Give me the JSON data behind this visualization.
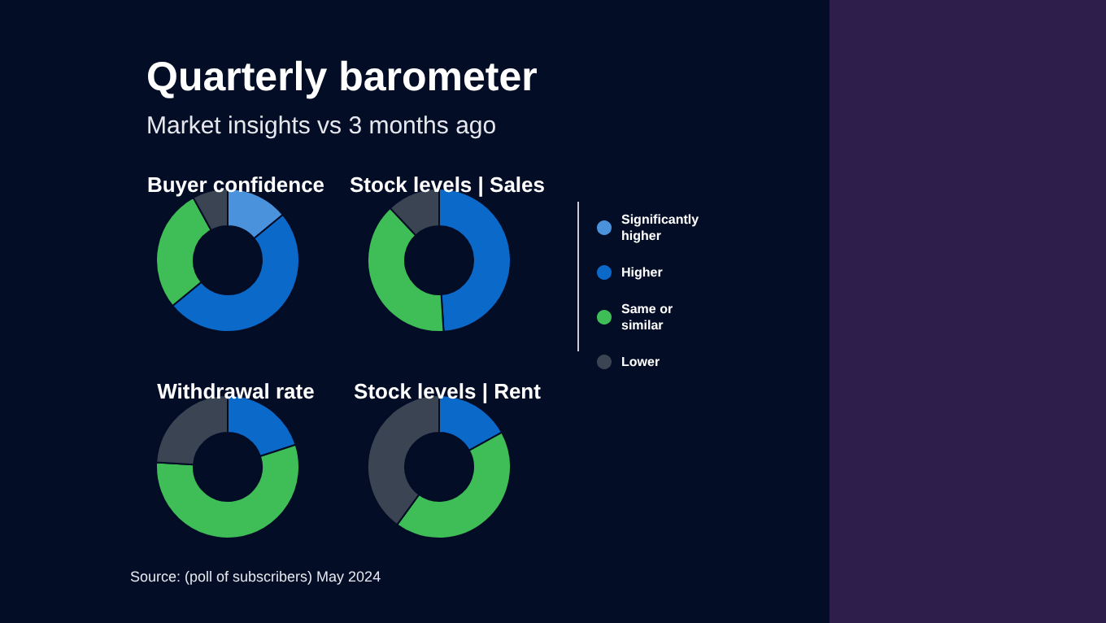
{
  "chart_data": {
    "type": "donut",
    "title": "Quarterly barometer",
    "subtitle": "Market insights vs 3 months ago",
    "categories": [
      "Significantly higher",
      "Higher",
      "Same or similar",
      "Lower"
    ],
    "colors": [
      "#4a92dc",
      "#0b69c9",
      "#3fbd56",
      "#3a4453"
    ],
    "series": [
      {
        "name": "Buyer confidence",
        "values": [
          14,
          50,
          28,
          8
        ]
      },
      {
        "name": "Stock levels | Sales",
        "values": [
          0,
          49,
          39,
          12
        ]
      },
      {
        "name": "Withdrawal rate",
        "values": [
          0,
          20,
          56,
          24
        ]
      },
      {
        "name": "Stock levels | Rent",
        "values": [
          0,
          17,
          43,
          40
        ]
      }
    ],
    "legend": "right",
    "annotations": [
      "Source: (poll of subscribers) May 2024"
    ]
  }
}
